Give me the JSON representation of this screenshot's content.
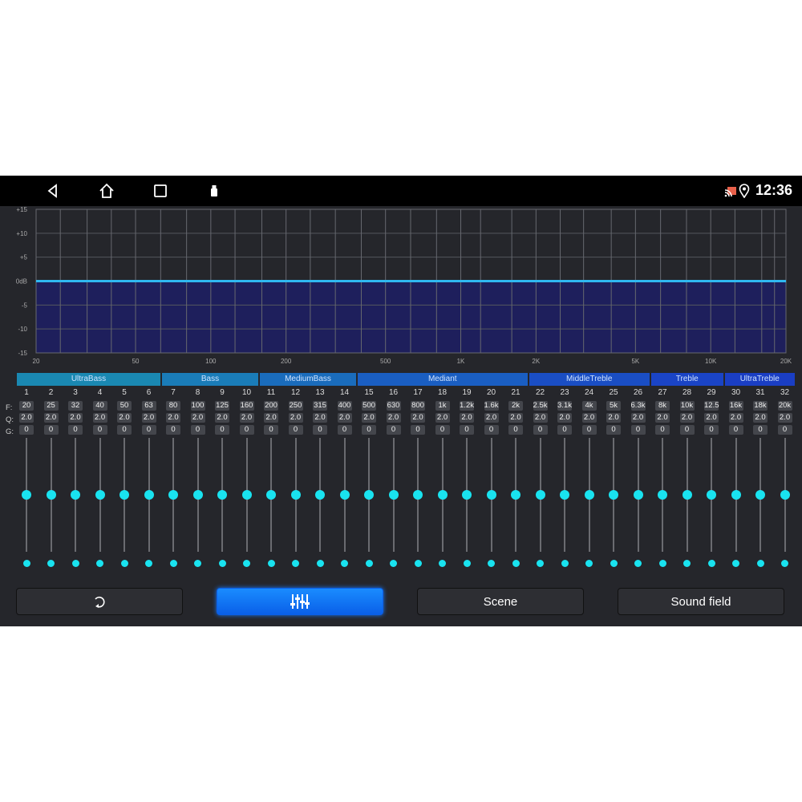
{
  "status": {
    "time": "12:36",
    "icons": [
      "back-icon",
      "home-icon",
      "recents-icon",
      "usb-icon",
      "cast-icon",
      "location-icon"
    ]
  },
  "graph": {
    "y_labels": [
      "+15",
      "+10",
      "+5",
      "0dB",
      "-5",
      "-10",
      "-15"
    ],
    "x_labels": [
      "20",
      "50",
      "100",
      "200",
      "500",
      "1K",
      "2K",
      "5K",
      "10K",
      "20K"
    ],
    "gain_db": 0,
    "line_color": "#2fb8f0",
    "fill_color": "#1e1f5c"
  },
  "bands": [
    {
      "label": "UltraBass",
      "from": 1,
      "to": 6
    },
    {
      "label": "Bass",
      "from": 7,
      "to": 10
    },
    {
      "label": "MediumBass",
      "from": 11,
      "to": 14
    },
    {
      "label": "Mediant",
      "from": 15,
      "to": 21
    },
    {
      "label": "MiddleTreble",
      "from": 22,
      "to": 26
    },
    {
      "label": "Treble",
      "from": 27,
      "to": 29
    },
    {
      "label": "UltraTreble",
      "from": 30,
      "to": 32
    }
  ],
  "row_labels": {
    "f": "F:",
    "q": "Q:",
    "g": "G:"
  },
  "channels": {
    "f": [
      "20",
      "25",
      "32",
      "40",
      "50",
      "63",
      "80",
      "100",
      "125",
      "160",
      "200",
      "250",
      "315",
      "400",
      "500",
      "630",
      "800",
      "1k",
      "1.2k",
      "1.6k",
      "2k",
      "2.5k",
      "3.1k",
      "4k",
      "5k",
      "6.3k",
      "8k",
      "10k",
      "12.5",
      "16k",
      "18k",
      "20k"
    ],
    "q": "2.0",
    "g": "0",
    "slider_level": 0.5
  },
  "accent": "#19e3f0",
  "buttons": {
    "reset_icon": "undo-icon",
    "eq_icon": "equalizer-sliders-icon",
    "scene": "Scene",
    "sound_field": "Sound field"
  }
}
